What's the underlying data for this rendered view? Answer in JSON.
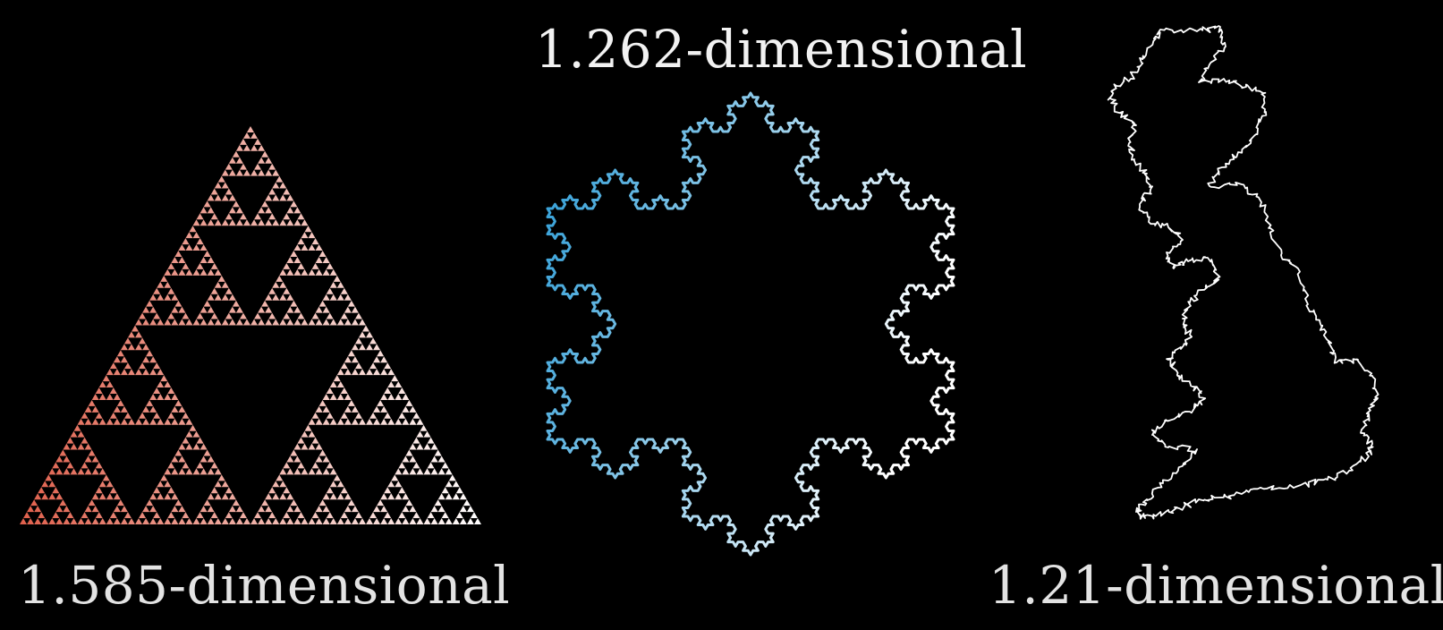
{
  "figures": [
    {
      "id": "sierpinski",
      "label": "1.585-dimensional",
      "shape": "sierpinski-triangle",
      "colors": {
        "start": "#e0604c",
        "end": "#ffffff"
      }
    },
    {
      "id": "koch",
      "label": "1.262-dimensional",
      "shape": "koch-snowflake",
      "colors": {
        "start": "#2a9bd6",
        "end": "#ffffff"
      }
    },
    {
      "id": "britain",
      "label": "1.21-dimensional",
      "shape": "great-britain-coastline",
      "colors": {
        "stroke": "#ffffff"
      }
    }
  ]
}
